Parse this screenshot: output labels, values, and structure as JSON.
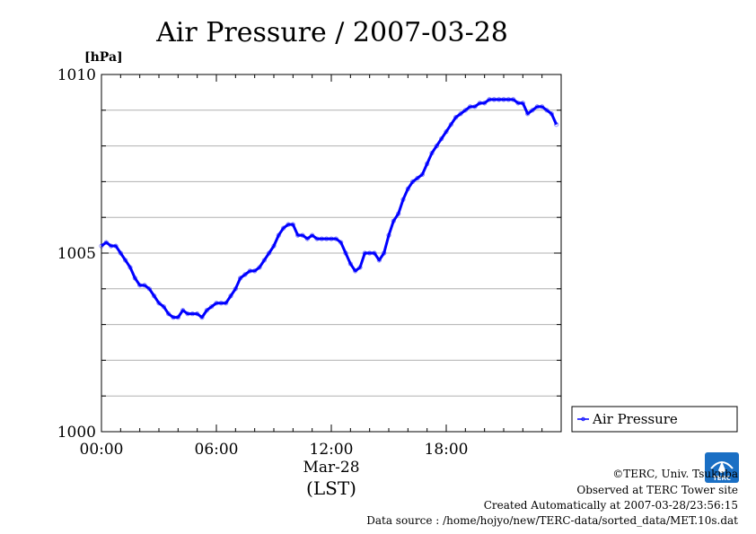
{
  "chart_data": {
    "type": "line",
    "title": "Air Pressure / 2007-03-28",
    "ylabel": "[hPa]",
    "xlabel": "(LST)",
    "date_label": "Mar-28",
    "ylim": [
      1000,
      1010
    ],
    "xlim": [
      0,
      24
    ],
    "y_ticks": [
      "1000",
      "1005",
      "1010"
    ],
    "x_ticks": [
      "00:00",
      "06:00",
      "12:00",
      "18:00"
    ],
    "grid": true,
    "legend_position": "bottom-right outside",
    "series": [
      {
        "name": "Air Pressure",
        "color": "#0000ff",
        "x": [
          0,
          0.25,
          0.5,
          0.75,
          1.0,
          1.25,
          1.5,
          1.75,
          2.0,
          2.25,
          2.5,
          2.75,
          3.0,
          3.25,
          3.5,
          3.75,
          4.0,
          4.25,
          4.5,
          4.75,
          5.0,
          5.25,
          5.5,
          5.75,
          6.0,
          6.25,
          6.5,
          6.75,
          7.0,
          7.25,
          7.5,
          7.75,
          8.0,
          8.25,
          8.5,
          8.75,
          9.0,
          9.25,
          9.5,
          9.75,
          10.0,
          10.25,
          10.5,
          10.75,
          11.0,
          11.25,
          11.5,
          11.75,
          12.0,
          12.25,
          12.5,
          12.75,
          13.0,
          13.25,
          13.5,
          13.75,
          14.0,
          14.25,
          14.5,
          14.75,
          15.0,
          15.25,
          15.5,
          15.75,
          16.0,
          16.25,
          16.5,
          16.75,
          17.0,
          17.25,
          17.5,
          17.75,
          18.0,
          18.25,
          18.5,
          18.75,
          19.0,
          19.25,
          19.5,
          19.75,
          20.0,
          20.25,
          20.5,
          20.75,
          21.0,
          21.25,
          21.5,
          21.75,
          22.0,
          22.25,
          22.5,
          22.75,
          23.0,
          23.25,
          23.5,
          23.75
        ],
        "values": [
          1005.2,
          1005.3,
          1005.2,
          1005.2,
          1005.0,
          1004.8,
          1004.6,
          1004.3,
          1004.1,
          1004.1,
          1004.0,
          1003.8,
          1003.6,
          1003.5,
          1003.3,
          1003.2,
          1003.2,
          1003.4,
          1003.3,
          1003.3,
          1003.3,
          1003.2,
          1003.4,
          1003.5,
          1003.6,
          1003.6,
          1003.6,
          1003.8,
          1004.0,
          1004.3,
          1004.4,
          1004.5,
          1004.5,
          1004.6,
          1004.8,
          1005.0,
          1005.2,
          1005.5,
          1005.7,
          1005.8,
          1005.8,
          1005.5,
          1005.5,
          1005.4,
          1005.5,
          1005.4,
          1005.4,
          1005.4,
          1005.4,
          1005.4,
          1005.3,
          1005.0,
          1004.7,
          1004.5,
          1004.6,
          1005.0,
          1005.0,
          1005.0,
          1004.8,
          1005.0,
          1005.5,
          1005.9,
          1006.1,
          1006.5,
          1006.8,
          1007.0,
          1007.1,
          1007.2,
          1007.5,
          1007.8,
          1008.0,
          1008.2,
          1008.4,
          1008.6,
          1008.8,
          1008.9,
          1009.0,
          1009.1,
          1009.1,
          1009.2,
          1009.2,
          1009.3,
          1009.3,
          1009.3,
          1009.3,
          1009.3,
          1009.3,
          1009.2,
          1009.2,
          1008.9,
          1009.0,
          1009.1,
          1009.1,
          1009.0,
          1008.9,
          1008.6
        ]
      }
    ]
  },
  "footer": {
    "copyright": "©TERC, Univ. Tsukuba",
    "observed": "Observed at TERC Tower site",
    "created": "Created Automatically at 2007-03-28/23:56:15",
    "source": "Data source : /home/hojyo/new/TERC-data/sorted_data/MET.10s.dat"
  },
  "logo": {
    "text": "TERC",
    "color": "#1a6fc4"
  }
}
